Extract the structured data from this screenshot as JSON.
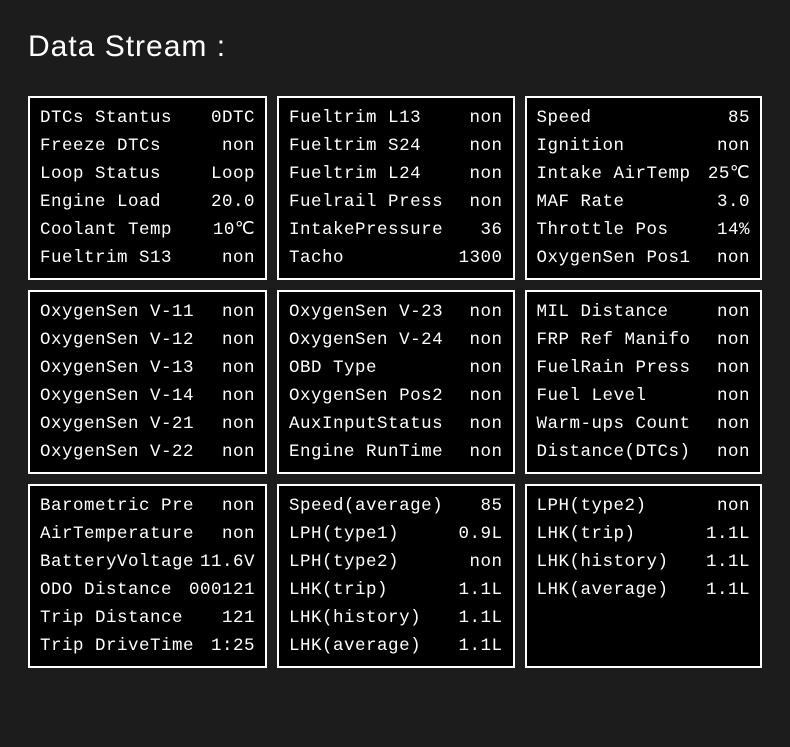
{
  "title": "Data Stream :",
  "panels": [
    {
      "rows": [
        {
          "label": "DTCs  Stantus",
          "value": "0DTC"
        },
        {
          "label": "Freeze DTCs",
          "value": "non"
        },
        {
          "label": "Loop  Status",
          "value": "Loop"
        },
        {
          "label": "Engine Load",
          "value": "20.0"
        },
        {
          "label": "Coolant  Temp",
          "value": "10℃"
        },
        {
          "label": "Fueltrim S13",
          "value": "non"
        }
      ]
    },
    {
      "rows": [
        {
          "label": "Fueltrim L13",
          "value": "non"
        },
        {
          "label": "Fueltrim S24",
          "value": "non"
        },
        {
          "label": "Fueltrim L24",
          "value": "non"
        },
        {
          "label": "Fuelrail Press",
          "value": "non"
        },
        {
          "label": "IntakePressure",
          "value": "36"
        },
        {
          "label": "Tacho",
          "value": "1300"
        }
      ]
    },
    {
      "rows": [
        {
          "label": "Speed",
          "value": "85"
        },
        {
          "label": "Ignition",
          "value": "non"
        },
        {
          "label": "Intake AirTemp",
          "value": "25℃"
        },
        {
          "label": "MAF Rate",
          "value": "3.0"
        },
        {
          "label": "Throttle Pos",
          "value": "14%"
        },
        {
          "label": "OxygenSen Pos1",
          "value": "non"
        }
      ]
    },
    {
      "rows": [
        {
          "label": "OxygenSen V-11",
          "value": "non"
        },
        {
          "label": "OxygenSen V-12",
          "value": "non"
        },
        {
          "label": "OxygenSen V-13",
          "value": "non"
        },
        {
          "label": "OxygenSen V-14",
          "value": "non"
        },
        {
          "label": "OxygenSen V-21",
          "value": "non"
        },
        {
          "label": "OxygenSen V-22",
          "value": "non"
        }
      ]
    },
    {
      "rows": [
        {
          "label": "OxygenSen V-23",
          "value": "non"
        },
        {
          "label": "OxygenSen V-24",
          "value": "non"
        },
        {
          "label": "OBD Type",
          "value": "non"
        },
        {
          "label": "OxygenSen Pos2",
          "value": "non"
        },
        {
          "label": "AuxInputStatus",
          "value": "non"
        },
        {
          "label": "Engine RunTime",
          "value": "non"
        }
      ]
    },
    {
      "rows": [
        {
          "label": "MIL   Distance",
          "value": "non"
        },
        {
          "label": "FRP Ref Manifo",
          "value": "non"
        },
        {
          "label": "FuelRain Press",
          "value": "non"
        },
        {
          "label": "Fuel Level",
          "value": "non"
        },
        {
          "label": "Warm-ups Count",
          "value": "non"
        },
        {
          "label": "Distance(DTCs)",
          "value": "non"
        }
      ]
    },
    {
      "rows": [
        {
          "label": "Barometric Pre",
          "value": "non"
        },
        {
          "label": "AirTemperature",
          "value": "non"
        },
        {
          "label": "BatteryVoltage",
          "value": "11.6V"
        },
        {
          "label": "ODO Distance",
          "value": "000121"
        },
        {
          "label": "Trip Distance",
          "value": "121"
        },
        {
          "label": "Trip DriveTime",
          "value": "1:25"
        }
      ]
    },
    {
      "rows": [
        {
          "label": "Speed(average)",
          "value": "85"
        },
        {
          "label": "LPH(type1)",
          "value": "0.9L"
        },
        {
          "label": "LPH(type2)",
          "value": "non"
        },
        {
          "label": "LHK(trip)",
          "value": "1.1L"
        },
        {
          "label": "LHK(history)",
          "value": "1.1L"
        },
        {
          "label": "LHK(average)",
          "value": "1.1L"
        }
      ]
    },
    {
      "rows": [
        {
          "label": "LPH(type2)",
          "value": "non"
        },
        {
          "label": "LHK(trip)",
          "value": "1.1L"
        },
        {
          "label": "LHK(history)",
          "value": "1.1L"
        },
        {
          "label": "LHK(average)",
          "value": "1.1L"
        }
      ]
    }
  ]
}
